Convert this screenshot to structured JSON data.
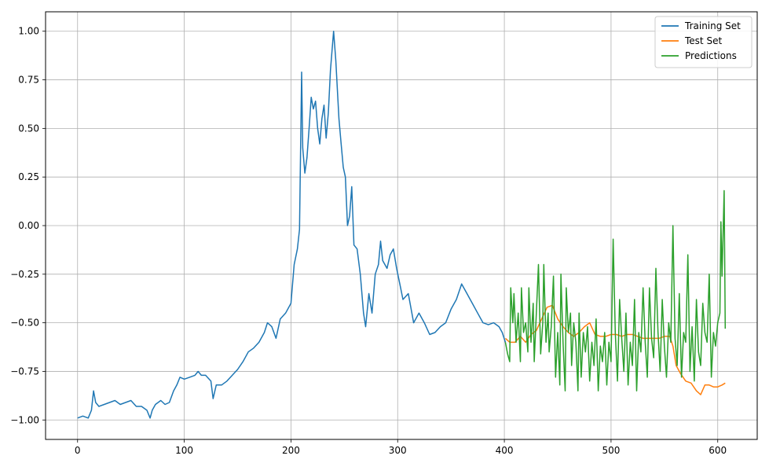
{
  "chart_data": {
    "type": "line",
    "xlim": [
      -30,
      637
    ],
    "ylim": [
      -1.1,
      1.1
    ],
    "x_ticks": [
      {
        "value": 0,
        "label": "0"
      },
      {
        "value": 100,
        "label": "100"
      },
      {
        "value": 200,
        "label": "200"
      },
      {
        "value": 300,
        "label": "300"
      },
      {
        "value": 400,
        "label": "400"
      },
      {
        "value": 500,
        "label": "500"
      },
      {
        "value": 600,
        "label": "600"
      }
    ],
    "y_ticks": [
      {
        "value": -1.0,
        "label": "−1.00"
      },
      {
        "value": -0.75,
        "label": "−0.75"
      },
      {
        "value": -0.5,
        "label": "−0.50"
      },
      {
        "value": -0.25,
        "label": "−0.25"
      },
      {
        "value": 0.0,
        "label": "0.00"
      },
      {
        "value": 0.25,
        "label": "0.25"
      },
      {
        "value": 0.5,
        "label": "0.50"
      },
      {
        "value": 0.75,
        "label": "0.75"
      },
      {
        "value": 1.0,
        "label": "1.00"
      }
    ],
    "grid": true,
    "legend_position": "top-right",
    "series": [
      {
        "name": "Training Set",
        "color": "#1f77b4",
        "points": [
          [
            0,
            -0.99
          ],
          [
            5,
            -0.98
          ],
          [
            10,
            -0.99
          ],
          [
            13,
            -0.95
          ],
          [
            15,
            -0.85
          ],
          [
            17,
            -0.91
          ],
          [
            20,
            -0.93
          ],
          [
            25,
            -0.92
          ],
          [
            30,
            -0.91
          ],
          [
            35,
            -0.9
          ],
          [
            40,
            -0.92
          ],
          [
            45,
            -0.91
          ],
          [
            50,
            -0.9
          ],
          [
            55,
            -0.93
          ],
          [
            60,
            -0.93
          ],
          [
            65,
            -0.95
          ],
          [
            68,
            -0.99
          ],
          [
            70,
            -0.95
          ],
          [
            73,
            -0.92
          ],
          [
            78,
            -0.9
          ],
          [
            82,
            -0.92
          ],
          [
            86,
            -0.91
          ],
          [
            90,
            -0.85
          ],
          [
            93,
            -0.82
          ],
          [
            96,
            -0.78
          ],
          [
            100,
            -0.79
          ],
          [
            105,
            -0.78
          ],
          [
            110,
            -0.77
          ],
          [
            113,
            -0.75
          ],
          [
            116,
            -0.77
          ],
          [
            120,
            -0.77
          ],
          [
            125,
            -0.8
          ],
          [
            127,
            -0.89
          ],
          [
            130,
            -0.82
          ],
          [
            135,
            -0.82
          ],
          [
            140,
            -0.8
          ],
          [
            145,
            -0.77
          ],
          [
            150,
            -0.74
          ],
          [
            155,
            -0.7
          ],
          [
            160,
            -0.65
          ],
          [
            165,
            -0.63
          ],
          [
            170,
            -0.6
          ],
          [
            175,
            -0.55
          ],
          [
            178,
            -0.5
          ],
          [
            182,
            -0.52
          ],
          [
            186,
            -0.58
          ],
          [
            190,
            -0.48
          ],
          [
            195,
            -0.45
          ],
          [
            200,
            -0.4
          ],
          [
            203,
            -0.2
          ],
          [
            206,
            -0.12
          ],
          [
            208,
            -0.02
          ],
          [
            210,
            0.79
          ],
          [
            211,
            0.4
          ],
          [
            213,
            0.27
          ],
          [
            215,
            0.35
          ],
          [
            217,
            0.5
          ],
          [
            219,
            0.66
          ],
          [
            221,
            0.6
          ],
          [
            223,
            0.64
          ],
          [
            225,
            0.5
          ],
          [
            227,
            0.42
          ],
          [
            229,
            0.55
          ],
          [
            231,
            0.62
          ],
          [
            233,
            0.45
          ],
          [
            235,
            0.58
          ],
          [
            237,
            0.8
          ],
          [
            240,
            1.0
          ],
          [
            242,
            0.85
          ],
          [
            245,
            0.55
          ],
          [
            247,
            0.42
          ],
          [
            249,
            0.3
          ],
          [
            251,
            0.25
          ],
          [
            253,
            0.0
          ],
          [
            255,
            0.05
          ],
          [
            257,
            0.2
          ],
          [
            259,
            -0.1
          ],
          [
            262,
            -0.12
          ],
          [
            265,
            -0.25
          ],
          [
            268,
            -0.45
          ],
          [
            270,
            -0.52
          ],
          [
            273,
            -0.35
          ],
          [
            276,
            -0.45
          ],
          [
            279,
            -0.25
          ],
          [
            282,
            -0.2
          ],
          [
            284,
            -0.08
          ],
          [
            286,
            -0.18
          ],
          [
            290,
            -0.22
          ],
          [
            293,
            -0.15
          ],
          [
            296,
            -0.12
          ],
          [
            299,
            -0.22
          ],
          [
            302,
            -0.3
          ],
          [
            305,
            -0.38
          ],
          [
            310,
            -0.35
          ],
          [
            315,
            -0.5
          ],
          [
            320,
            -0.45
          ],
          [
            325,
            -0.5
          ],
          [
            330,
            -0.56
          ],
          [
            335,
            -0.55
          ],
          [
            340,
            -0.52
          ],
          [
            345,
            -0.5
          ],
          [
            350,
            -0.43
          ],
          [
            355,
            -0.38
          ],
          [
            360,
            -0.3
          ],
          [
            365,
            -0.35
          ],
          [
            370,
            -0.4
          ],
          [
            375,
            -0.45
          ],
          [
            380,
            -0.5
          ],
          [
            385,
            -0.51
          ],
          [
            390,
            -0.5
          ],
          [
            395,
            -0.52
          ],
          [
            398,
            -0.55
          ],
          [
            401,
            -0.6
          ]
        ]
      },
      {
        "name": "Test Set",
        "color": "#ff7f0e",
        "points": [
          [
            401,
            -0.58
          ],
          [
            405,
            -0.6
          ],
          [
            410,
            -0.6
          ],
          [
            415,
            -0.57
          ],
          [
            420,
            -0.6
          ],
          [
            425,
            -0.56
          ],
          [
            430,
            -0.54
          ],
          [
            435,
            -0.48
          ],
          [
            440,
            -0.42
          ],
          [
            445,
            -0.41
          ],
          [
            450,
            -0.48
          ],
          [
            455,
            -0.52
          ],
          [
            460,
            -0.55
          ],
          [
            465,
            -0.57
          ],
          [
            470,
            -0.55
          ],
          [
            475,
            -0.52
          ],
          [
            480,
            -0.5
          ],
          [
            485,
            -0.56
          ],
          [
            490,
            -0.57
          ],
          [
            495,
            -0.57
          ],
          [
            500,
            -0.56
          ],
          [
            505,
            -0.56
          ],
          [
            510,
            -0.57
          ],
          [
            515,
            -0.56
          ],
          [
            520,
            -0.56
          ],
          [
            525,
            -0.57
          ],
          [
            530,
            -0.58
          ],
          [
            535,
            -0.58
          ],
          [
            540,
            -0.58
          ],
          [
            545,
            -0.58
          ],
          [
            550,
            -0.57
          ],
          [
            555,
            -0.57
          ],
          [
            558,
            -0.62
          ],
          [
            561,
            -0.72
          ],
          [
            565,
            -0.76
          ],
          [
            570,
            -0.8
          ],
          [
            575,
            -0.81
          ],
          [
            580,
            -0.85
          ],
          [
            584,
            -0.87
          ],
          [
            588,
            -0.82
          ],
          [
            592,
            -0.82
          ],
          [
            596,
            -0.83
          ],
          [
            600,
            -0.83
          ],
          [
            604,
            -0.82
          ],
          [
            607,
            -0.81
          ]
        ]
      },
      {
        "name": "Predictions",
        "color": "#2ca02c",
        "points": [
          [
            401,
            -0.6
          ],
          [
            403,
            -0.66
          ],
          [
            405,
            -0.7
          ],
          [
            406,
            -0.32
          ],
          [
            408,
            -0.5
          ],
          [
            409,
            -0.35
          ],
          [
            411,
            -0.6
          ],
          [
            413,
            -0.45
          ],
          [
            415,
            -0.7
          ],
          [
            416,
            -0.32
          ],
          [
            418,
            -0.55
          ],
          [
            420,
            -0.5
          ],
          [
            422,
            -0.65
          ],
          [
            423,
            -0.32
          ],
          [
            425,
            -0.6
          ],
          [
            427,
            -0.4
          ],
          [
            428,
            -0.7
          ],
          [
            430,
            -0.45
          ],
          [
            432,
            -0.2
          ],
          [
            434,
            -0.66
          ],
          [
            436,
            -0.5
          ],
          [
            437,
            -0.2
          ],
          [
            439,
            -0.6
          ],
          [
            441,
            -0.45
          ],
          [
            442,
            -0.65
          ],
          [
            444,
            -0.52
          ],
          [
            446,
            -0.26
          ],
          [
            448,
            -0.78
          ],
          [
            450,
            -0.55
          ],
          [
            452,
            -0.82
          ],
          [
            453,
            -0.25
          ],
          [
            455,
            -0.6
          ],
          [
            457,
            -0.85
          ],
          [
            458,
            -0.32
          ],
          [
            460,
            -0.55
          ],
          [
            462,
            -0.45
          ],
          [
            463,
            -0.72
          ],
          [
            465,
            -0.5
          ],
          [
            467,
            -0.6
          ],
          [
            469,
            -0.85
          ],
          [
            470,
            -0.45
          ],
          [
            472,
            -0.78
          ],
          [
            474,
            -0.55
          ],
          [
            476,
            -0.65
          ],
          [
            478,
            -0.52
          ],
          [
            480,
            -0.8
          ],
          [
            482,
            -0.6
          ],
          [
            484,
            -0.72
          ],
          [
            486,
            -0.48
          ],
          [
            488,
            -0.85
          ],
          [
            490,
            -0.62
          ],
          [
            492,
            -0.7
          ],
          [
            494,
            -0.55
          ],
          [
            496,
            -0.82
          ],
          [
            498,
            -0.6
          ],
          [
            500,
            -0.7
          ],
          [
            502,
            -0.07
          ],
          [
            504,
            -0.55
          ],
          [
            506,
            -0.8
          ],
          [
            508,
            -0.38
          ],
          [
            510,
            -0.58
          ],
          [
            512,
            -0.75
          ],
          [
            514,
            -0.45
          ],
          [
            516,
            -0.82
          ],
          [
            518,
            -0.6
          ],
          [
            520,
            -0.72
          ],
          [
            522,
            -0.38
          ],
          [
            524,
            -0.85
          ],
          [
            526,
            -0.55
          ],
          [
            528,
            -0.65
          ],
          [
            530,
            -0.32
          ],
          [
            532,
            -0.6
          ],
          [
            534,
            -0.78
          ],
          [
            536,
            -0.32
          ],
          [
            538,
            -0.58
          ],
          [
            540,
            -0.68
          ],
          [
            542,
            -0.22
          ],
          [
            544,
            -0.55
          ],
          [
            546,
            -0.75
          ],
          [
            548,
            -0.38
          ],
          [
            550,
            -0.62
          ],
          [
            552,
            -0.78
          ],
          [
            554,
            -0.5
          ],
          [
            556,
            -0.6
          ],
          [
            558,
            -0.0
          ],
          [
            560,
            -0.58
          ],
          [
            562,
            -0.72
          ],
          [
            564,
            -0.35
          ],
          [
            566,
            -0.78
          ],
          [
            568,
            -0.55
          ],
          [
            570,
            -0.6
          ],
          [
            572,
            -0.15
          ],
          [
            574,
            -0.75
          ],
          [
            576,
            -0.52
          ],
          [
            578,
            -0.8
          ],
          [
            580,
            -0.38
          ],
          [
            582,
            -0.65
          ],
          [
            584,
            -0.72
          ],
          [
            586,
            -0.4
          ],
          [
            588,
            -0.55
          ],
          [
            590,
            -0.6
          ],
          [
            592,
            -0.25
          ],
          [
            594,
            -0.78
          ],
          [
            596,
            -0.55
          ],
          [
            598,
            -0.62
          ],
          [
            600,
            -0.5
          ],
          [
            602,
            -0.45
          ],
          [
            603,
            0.02
          ],
          [
            604,
            -0.26
          ],
          [
            606,
            0.18
          ],
          [
            607,
            -0.53
          ]
        ]
      }
    ]
  }
}
